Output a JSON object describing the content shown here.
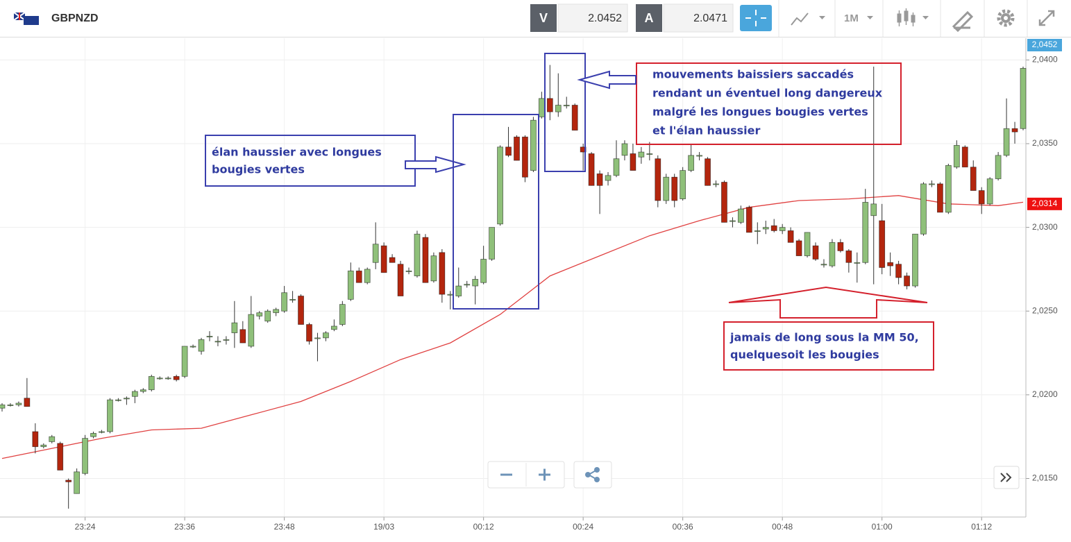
{
  "toolbar": {
    "symbol": "GBPNZD",
    "bid_label": "V",
    "bid": "2.0452",
    "ask_label": "A",
    "ask": "2.0471",
    "timeframe": "1M"
  },
  "chart_data": {
    "type": "candlestick",
    "up_color": "#8fc07a",
    "down_color": "#b3260e",
    "categories": [
      null,
      null,
      null,
      null,
      null,
      null,
      null,
      null,
      null,
      null,
      "23:24",
      null,
      null,
      null,
      null,
      null,
      null,
      null,
      null,
      null,
      null,
      null,
      "23:36",
      null,
      null,
      null,
      null,
      null,
      null,
      null,
      null,
      null,
      null,
      null,
      "23:48",
      null,
      null,
      null,
      null,
      null,
      null,
      null,
      null,
      null,
      null,
      null,
      "19/03",
      null,
      null,
      null,
      null,
      null,
      null,
      null,
      null,
      null,
      null,
      null,
      "00:12",
      null,
      null,
      null,
      null,
      null,
      null,
      null,
      null,
      null,
      null,
      null,
      "00:24",
      null,
      null,
      null,
      null,
      null,
      null,
      null,
      null,
      null,
      null,
      null,
      "00:36",
      null,
      null,
      null,
      null,
      null,
      null,
      null,
      null,
      null,
      null,
      null,
      "00:48",
      null,
      null,
      null,
      null,
      null,
      null,
      null,
      null,
      null,
      null,
      null,
      "01:00",
      null,
      null,
      null,
      null,
      null,
      null,
      null,
      null,
      null,
      null,
      null,
      "01:12",
      null,
      null,
      null,
      null,
      null
    ],
    "candles": [
      [
        2.0192,
        2.0195,
        2.019,
        2.0194
      ],
      [
        2.0194,
        2.0195,
        2.0193,
        2.0194
      ],
      [
        2.0194,
        2.0196,
        2.0193,
        2.0195
      ],
      [
        2.0198,
        2.021,
        2.0193,
        2.0193
      ],
      [
        2.0178,
        2.0183,
        2.0165,
        2.0169
      ],
      [
        2.0169,
        2.0171,
        2.0168,
        2.017
      ],
      [
        2.0172,
        2.0176,
        2.0171,
        2.0175
      ],
      [
        2.0171,
        2.0172,
        2.0155,
        2.0155
      ],
      [
        2.0149,
        2.015,
        2.0132,
        2.0148
      ],
      [
        2.0141,
        2.0156,
        2.0141,
        2.0154
      ],
      [
        2.0153,
        2.0176,
        2.0152,
        2.0174
      ],
      [
        2.0175,
        2.0178,
        2.0174,
        2.0177
      ],
      [
        2.0178,
        2.0179,
        2.0177,
        2.0178
      ],
      [
        2.0178,
        2.0198,
        2.0177,
        2.0197
      ],
      [
        2.0197,
        2.0198,
        2.0196,
        2.0197
      ],
      [
        2.0198,
        2.0199,
        2.0194,
        2.0198
      ],
      [
        2.0199,
        2.0203,
        2.0195,
        2.0202
      ],
      [
        2.0202,
        2.0204,
        2.0201,
        2.0203
      ],
      [
        2.0203,
        2.0212,
        2.0202,
        2.0211
      ],
      [
        2.021,
        2.0211,
        2.0209,
        2.021
      ],
      [
        2.021,
        2.0211,
        2.0209,
        2.021
      ],
      [
        2.0211,
        2.0212,
        2.0208,
        2.0209
      ],
      [
        2.0211,
        2.0229,
        2.021,
        2.0229
      ],
      [
        2.0229,
        2.023,
        2.0228,
        2.0229
      ],
      [
        2.0226,
        2.0234,
        2.0224,
        2.0233
      ],
      [
        2.0235,
        2.0238,
        2.0232,
        2.0235
      ],
      [
        2.0232,
        2.0235,
        2.0229,
        2.0232
      ],
      [
        2.0233,
        2.0235,
        2.023,
        2.0233
      ],
      [
        2.0237,
        2.0256,
        2.0228,
        2.0243
      ],
      [
        2.0239,
        2.0244,
        2.0231,
        2.0231
      ],
      [
        2.0229,
        2.0259,
        2.0228,
        2.0248
      ],
      [
        2.0247,
        2.025,
        2.0245,
        2.0249
      ],
      [
        2.0244,
        2.0251,
        2.0243,
        2.025
      ],
      [
        2.0249,
        2.0252,
        2.0247,
        2.0251
      ],
      [
        2.025,
        2.0265,
        2.0249,
        2.0261
      ],
      [
        2.0257,
        2.0262,
        2.0255,
        2.0257
      ],
      [
        2.0259,
        2.026,
        2.0242,
        2.0242
      ],
      [
        2.0242,
        2.0243,
        2.023,
        2.0232
      ],
      [
        2.0234,
        2.0237,
        2.022,
        2.0234
      ],
      [
        2.0234,
        2.0238,
        2.0232,
        2.0237
      ],
      [
        2.0239,
        2.0245,
        2.0238,
        2.0241
      ],
      [
        2.0242,
        2.0256,
        2.0241,
        2.0254
      ],
      [
        2.0257,
        2.0279,
        2.0256,
        2.0274
      ],
      [
        2.0274,
        2.0276,
        2.0267,
        2.0267
      ],
      [
        2.0267,
        2.0276,
        2.0266,
        2.0275
      ],
      [
        2.0279,
        2.0303,
        2.0275,
        2.029
      ],
      [
        2.0289,
        2.0291,
        2.0273,
        2.0273
      ],
      [
        2.0282,
        2.0284,
        2.0279,
        2.0279
      ],
      [
        2.0278,
        2.028,
        2.0259,
        2.0259
      ],
      [
        2.0274,
        2.0276,
        2.0272,
        2.0274
      ],
      [
        2.0271,
        2.0298,
        2.027,
        2.0296
      ],
      [
        2.0294,
        2.0296,
        2.0267,
        2.0267
      ],
      [
        2.0268,
        2.0285,
        2.0267,
        2.0283
      ],
      [
        2.0285,
        2.0287,
        2.0255,
        2.026
      ],
      [
        2.026,
        2.0262,
        2.0251,
        2.026
      ],
      [
        2.0259,
        2.0276,
        2.0258,
        2.0265
      ],
      [
        2.0266,
        2.0268,
        2.0264,
        2.0266
      ],
      [
        2.0265,
        2.0271,
        2.0254,
        2.0269
      ],
      [
        2.0267,
        2.0289,
        2.0266,
        2.0281
      ],
      [
        2.0281,
        2.03,
        2.028,
        2.03
      ],
      [
        2.0302,
        2.0349,
        2.0301,
        2.0348
      ],
      [
        2.0348,
        2.036,
        2.0342,
        2.0343
      ],
      [
        2.0354,
        2.0355,
        2.034,
        2.034
      ],
      [
        2.0354,
        2.0355,
        2.0327,
        2.033
      ],
      [
        2.0334,
        2.0366,
        2.0333,
        2.0364
      ],
      [
        2.0366,
        2.0381,
        2.0365,
        2.0377
      ],
      [
        2.0377,
        2.0397,
        2.0364,
        2.0369
      ],
      [
        2.0369,
        2.0392,
        2.0366,
        2.0373
      ],
      [
        2.0373,
        2.0378,
        2.0371,
        2.0373
      ],
      [
        2.0373,
        2.0374,
        2.0358,
        2.0358
      ],
      [
        2.0348,
        2.035,
        2.0334,
        2.0345
      ],
      [
        2.0344,
        2.0345,
        2.0325,
        2.0325
      ],
      [
        2.0332,
        2.0334,
        2.0308,
        2.0325
      ],
      [
        2.0328,
        2.0333,
        2.0325,
        2.0331
      ],
      [
        2.0331,
        2.0352,
        2.033,
        2.0341
      ],
      [
        2.0343,
        2.0352,
        2.034,
        2.035
      ],
      [
        2.0344,
        2.035,
        2.0334,
        2.0334
      ],
      [
        2.0342,
        2.0348,
        2.0338,
        2.0345
      ],
      [
        2.0344,
        2.0351,
        2.034,
        2.0344
      ],
      [
        2.0341,
        2.0343,
        2.0312,
        2.0316
      ],
      [
        2.0316,
        2.0332,
        2.0314,
        2.033
      ],
      [
        2.033,
        2.0332,
        2.0312,
        2.0316
      ],
      [
        2.0317,
        2.0336,
        2.0316,
        2.0334
      ],
      [
        2.0334,
        2.035,
        2.0333,
        2.0343
      ],
      [
        2.0343,
        2.0345,
        2.034,
        2.0343
      ],
      [
        2.0341,
        2.0342,
        2.0325,
        2.0325
      ],
      [
        2.0326,
        2.0328,
        2.0324,
        2.0326
      ],
      [
        2.0327,
        2.0328,
        2.0303,
        2.0303
      ],
      [
        2.0304,
        2.0306,
        2.03,
        2.0304
      ],
      [
        2.0303,
        2.0313,
        2.0302,
        2.0311
      ],
      [
        2.0312,
        2.0313,
        2.0297,
        2.0297
      ],
      [
        2.0298,
        2.0303,
        2.029,
        2.0298
      ],
      [
        2.0299,
        2.0304,
        2.0296,
        2.03
      ],
      [
        2.0301,
        2.0305,
        2.0297,
        2.0298
      ],
      [
        2.0298,
        2.0302,
        2.0296,
        2.03
      ],
      [
        2.0298,
        2.03,
        2.0291,
        2.0291
      ],
      [
        2.0292,
        2.0293,
        2.0283,
        2.0283
      ],
      [
        2.0283,
        2.0297,
        2.0282,
        2.0297
      ],
      [
        2.0289,
        2.0291,
        2.028,
        2.0281
      ],
      [
        2.0278,
        2.0281,
        2.0276,
        2.0278
      ],
      [
        2.0277,
        2.0293,
        2.0276,
        2.0291
      ],
      [
        2.0291,
        2.0293,
        2.0285,
        2.0286
      ],
      [
        2.0286,
        2.0287,
        2.0273,
        2.0279
      ],
      [
        2.0279,
        2.0285,
        2.0267,
        2.0279
      ],
      [
        2.0279,
        2.0323,
        2.0278,
        2.0315
      ],
      [
        2.0307,
        2.0396,
        2.0266,
        2.0314
      ],
      [
        2.0304,
        2.0314,
        2.0272,
        2.0276
      ],
      [
        2.0279,
        2.0285,
        2.0271,
        2.0277
      ],
      [
        2.0278,
        2.028,
        2.0266,
        2.027
      ],
      [
        2.0271,
        2.0273,
        2.0263,
        2.0265
      ],
      [
        2.0265,
        2.0296,
        2.0264,
        2.0296
      ],
      [
        2.0296,
        2.0327,
        2.0295,
        2.0326
      ],
      [
        2.0326,
        2.0328,
        2.0324,
        2.0326
      ],
      [
        2.0326,
        2.0327,
        2.0309,
        2.0309
      ],
      [
        2.0309,
        2.0338,
        2.0308,
        2.0337
      ],
      [
        2.0336,
        2.0352,
        2.0335,
        2.0349
      ],
      [
        2.0348,
        2.0349,
        2.0336,
        2.0336
      ],
      [
        2.0336,
        2.034,
        2.0322,
        2.0322
      ],
      [
        2.0322,
        2.0324,
        2.0308,
        2.0314
      ],
      [
        2.0314,
        2.033,
        2.0313,
        2.0329
      ],
      [
        2.0329,
        2.0345,
        2.0328,
        2.0343
      ],
      [
        2.0343,
        2.0377,
        2.0342,
        2.0359
      ],
      [
        2.0359,
        2.0363,
        2.035,
        2.0357
      ],
      [
        2.0359,
        2.0396,
        2.0358,
        2.0395
      ]
    ],
    "moving_average": {
      "color": "#e04040",
      "x": [
        0,
        6,
        12,
        18,
        24,
        30,
        36,
        42,
        48,
        54,
        60,
        66,
        72,
        78,
        84,
        90,
        96,
        102,
        108,
        114,
        120,
        123
      ],
      "values": [
        2.0162,
        2.0168,
        2.0174,
        2.0179,
        2.018,
        2.0188,
        2.0196,
        2.0208,
        2.0221,
        2.0231,
        2.0248,
        2.0271,
        2.0283,
        2.0295,
        2.0304,
        2.0312,
        2.0316,
        2.0317,
        2.0319,
        2.0314,
        2.0313,
        2.0315
      ]
    },
    "ylim": [
      2.0127,
      2.0413
    ],
    "yticks": [
      {
        "value": 2.015,
        "label": "2,0150"
      },
      {
        "value": 2.02,
        "label": "2,0200"
      },
      {
        "value": 2.025,
        "label": "2,0250"
      },
      {
        "value": 2.03,
        "label": "2,0300"
      },
      {
        "value": 2.035,
        "label": "2,0350"
      },
      {
        "value": 2.04,
        "label": "2,0400"
      }
    ],
    "grid": true,
    "price_tags": [
      {
        "value": 2.0452,
        "label": "2,0452",
        "color": "#4aa6dc"
      },
      {
        "value": 2.0314,
        "label": "2,0314",
        "color": "#ee1111"
      }
    ],
    "annotations": [
      {
        "lines": [
          "élan haussier avec longues",
          "bougies vertes"
        ],
        "color": "#3a3fae"
      },
      {
        "lines": [
          "mouvements  baissiers saccadés",
          "rendant un éventuel long dangereux",
          "malgré les longues bougies vertes",
          "et l'élan haussier"
        ],
        "color": "#d4202c"
      },
      {
        "lines": [
          "jamais de long sous la MM 50,",
          "quelquesoit les bougies"
        ],
        "color": "#d4202c"
      }
    ]
  }
}
